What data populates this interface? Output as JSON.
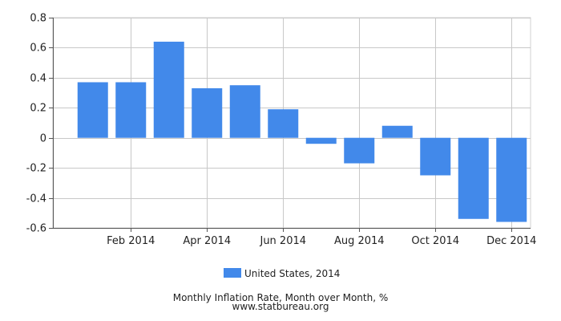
{
  "chart_data": {
    "type": "bar",
    "categories": [
      "Jan 2014",
      "Feb 2014",
      "Mar 2014",
      "Apr 2014",
      "May 2014",
      "Jun 2014",
      "Jul 2014",
      "Aug 2014",
      "Sep 2014",
      "Oct 2014",
      "Nov 2014",
      "Dec 2014"
    ],
    "x_tick_labels": [
      "Feb 2014",
      "Apr 2014",
      "Jun 2014",
      "Aug 2014",
      "Oct 2014",
      "Dec 2014"
    ],
    "series": [
      {
        "name": "United States, 2014",
        "color": "#4289ea",
        "values": [
          0.37,
          0.37,
          0.64,
          0.33,
          0.35,
          0.19,
          -0.04,
          -0.17,
          0.08,
          -0.25,
          -0.54,
          -0.56
        ]
      }
    ],
    "yticks": [
      "0.8",
      "0.6",
      "0.4",
      "0.2",
      "0",
      "-0.2",
      "-0.4",
      "-0.6"
    ],
    "ylim": [
      -0.6,
      0.8
    ],
    "grid": true,
    "legend_position": "bottom"
  },
  "caption": {
    "title": "Monthly Inflation Rate, Month over Month, %",
    "source": "www.statbureau.org"
  }
}
